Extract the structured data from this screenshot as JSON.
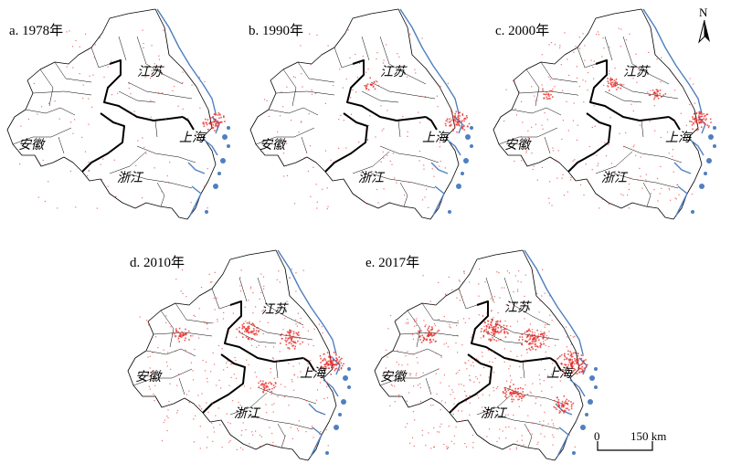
{
  "panels": [
    {
      "label": "a. 1978年",
      "density": 0.15,
      "hotspots": [
        [
          0.88,
          0.52,
          0.9
        ]
      ]
    },
    {
      "label": "b. 1990年",
      "density": 0.25,
      "hotspots": [
        [
          0.88,
          0.52,
          1.0
        ],
        [
          0.52,
          0.36,
          0.4
        ]
      ]
    },
    {
      "label": "c. 2000年",
      "density": 0.4,
      "hotspots": [
        [
          0.88,
          0.52,
          1.0
        ],
        [
          0.52,
          0.36,
          0.6
        ],
        [
          0.25,
          0.4,
          0.4
        ],
        [
          0.7,
          0.4,
          0.5
        ]
      ]
    },
    {
      "label": "d. 2010年",
      "density": 0.65,
      "hotspots": [
        [
          0.86,
          0.52,
          1.2
        ],
        [
          0.52,
          0.38,
          0.9
        ],
        [
          0.25,
          0.4,
          0.6
        ],
        [
          0.7,
          0.42,
          0.9
        ],
        [
          0.6,
          0.62,
          0.6
        ]
      ]
    },
    {
      "label": "e. 2017年",
      "density": 0.9,
      "hotspots": [
        [
          0.84,
          0.52,
          1.4
        ],
        [
          0.52,
          0.38,
          1.2
        ],
        [
          0.25,
          0.4,
          0.9
        ],
        [
          0.68,
          0.42,
          1.2
        ],
        [
          0.6,
          0.65,
          0.9
        ],
        [
          0.8,
          0.7,
          0.8
        ]
      ]
    }
  ],
  "provinces": {
    "jiangsu": "江苏",
    "shanghai": "上海",
    "anhui": "安徽",
    "zhejiang": "浙江"
  },
  "north_arrow": "N",
  "scale": {
    "zero": "0",
    "distance": "150 km"
  },
  "colors": {
    "urban": "#e8302c",
    "water": "#4f7fc0",
    "boundary": "#000000"
  }
}
